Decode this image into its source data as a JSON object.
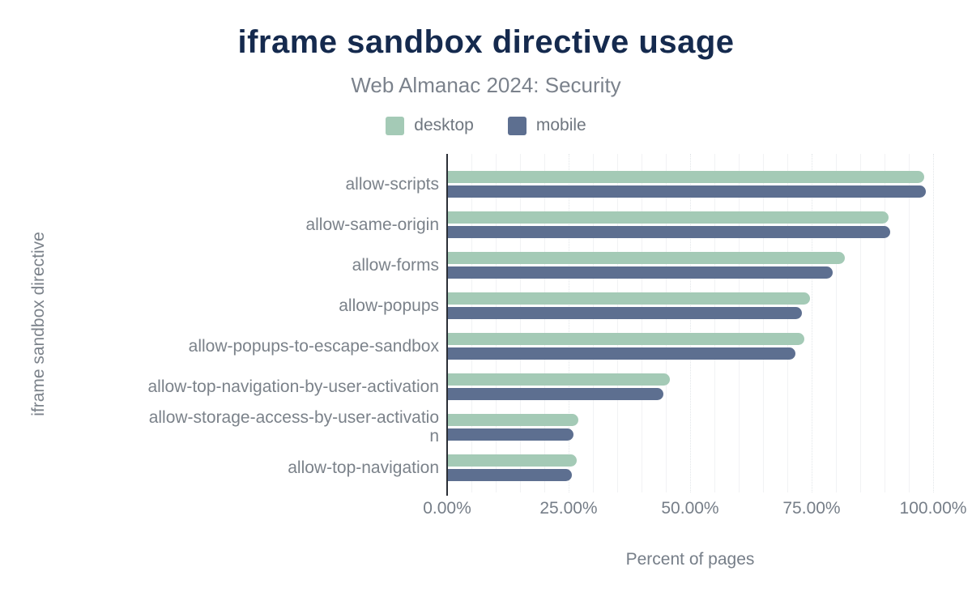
{
  "chart_data": {
    "type": "bar",
    "orientation": "horizontal",
    "title": "iframe sandbox directive usage",
    "subtitle": "Web Almanac 2024: Security",
    "xlabel": "Percent of pages",
    "ylabel": "iframe sandbox directive",
    "xlim": [
      0,
      100
    ],
    "x_ticks": [
      {
        "value": 0,
        "label": "0.00%"
      },
      {
        "value": 25,
        "label": "25.00%"
      },
      {
        "value": 50,
        "label": "50.00%"
      },
      {
        "value": 75,
        "label": "75.00%"
      },
      {
        "value": 100,
        "label": "100.00%"
      }
    ],
    "grid": {
      "minor_step_percent": 5,
      "major_step_percent": 25
    },
    "legend_position": "top",
    "categories": [
      {
        "label": "allow-scripts",
        "lines": [
          "allow-scripts"
        ]
      },
      {
        "label": "allow-same-origin",
        "lines": [
          "allow-same-origin"
        ]
      },
      {
        "label": "allow-forms",
        "lines": [
          "allow-forms"
        ]
      },
      {
        "label": "allow-popups",
        "lines": [
          "allow-popups"
        ]
      },
      {
        "label": "allow-popups-to-escape-sandbox",
        "lines": [
          "allow-popups-to-escape-sandbox"
        ]
      },
      {
        "label": "allow-top-navigation-by-user-activation",
        "lines": [
          "allow-top-navigation-by-user-activation"
        ]
      },
      {
        "label": "allow-storage-access-by-user-activation",
        "lines": [
          "allow-storage-access-by-user-activatio",
          "n"
        ]
      },
      {
        "label": "allow-top-navigation",
        "lines": [
          "allow-top-navigation"
        ]
      }
    ],
    "series": [
      {
        "name": "desktop",
        "color": "#a4cab6",
        "values": [
          98.2,
          90.8,
          81.8,
          74.7,
          73.5,
          45.8,
          27.0,
          26.7
        ]
      },
      {
        "name": "mobile",
        "color": "#5d6f90",
        "values": [
          98.5,
          91.2,
          79.3,
          73.0,
          71.7,
          44.5,
          26.0,
          25.7
        ]
      }
    ]
  },
  "colors": {
    "title": "#152a4e",
    "subtitle_text": "#7b828c",
    "axis_text": "#767e88",
    "axis_line": "#2b2f36",
    "desktop": "#a4cab6",
    "mobile": "#5d6f90"
  }
}
